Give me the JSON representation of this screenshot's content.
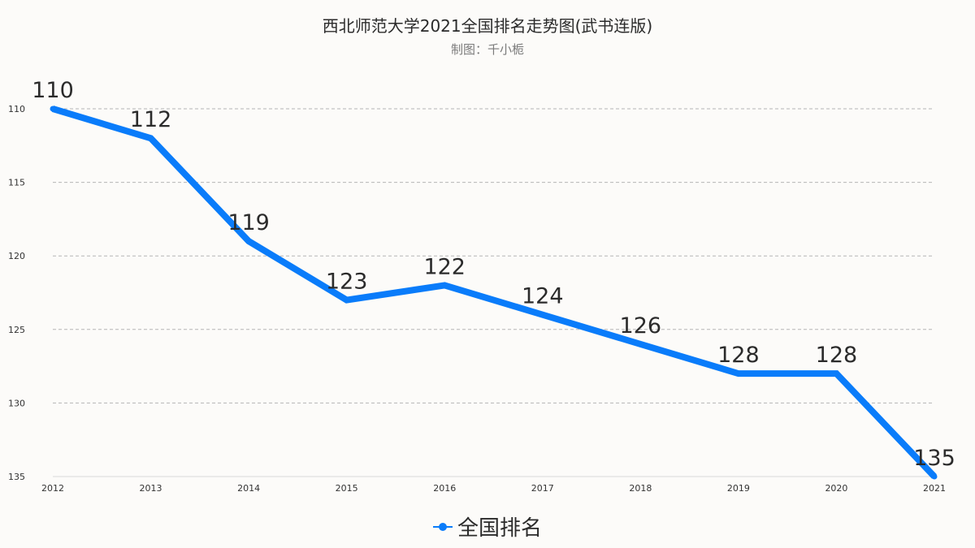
{
  "chart_data": {
    "type": "line",
    "title": "西北师范大学2021全国排名走势图(武书连版)",
    "subtitle": "制图：千小栀",
    "x": [
      "2012",
      "2013",
      "2014",
      "2015",
      "2016",
      "2017",
      "2018",
      "2019",
      "2020",
      "2021"
    ],
    "series": [
      {
        "name": "全国排名",
        "values": [
          110,
          112,
          119,
          123,
          122,
          124,
          126,
          128,
          128,
          135
        ]
      }
    ],
    "data_labels": [
      "110",
      "112",
      "119",
      "123",
      "122",
      "124",
      "126",
      "128",
      "128",
      "135"
    ],
    "y_ticks": [
      "110",
      "115",
      "120",
      "125",
      "130",
      "135"
    ],
    "y_tick_values": [
      110,
      115,
      120,
      125,
      130,
      135
    ],
    "ylim": [
      110,
      135
    ],
    "y_inverted": true,
    "grid": true,
    "grid_style": "dashed",
    "legend_position": "bottom",
    "xlabel": "",
    "ylabel": "",
    "colors": {
      "line": "#0a7cfa",
      "grid": "#b5b5b5",
      "axis": "#d9d9d9",
      "tick_text": "#333333",
      "label_text": "#2b2b2b",
      "background": "#fcfbf9"
    }
  }
}
